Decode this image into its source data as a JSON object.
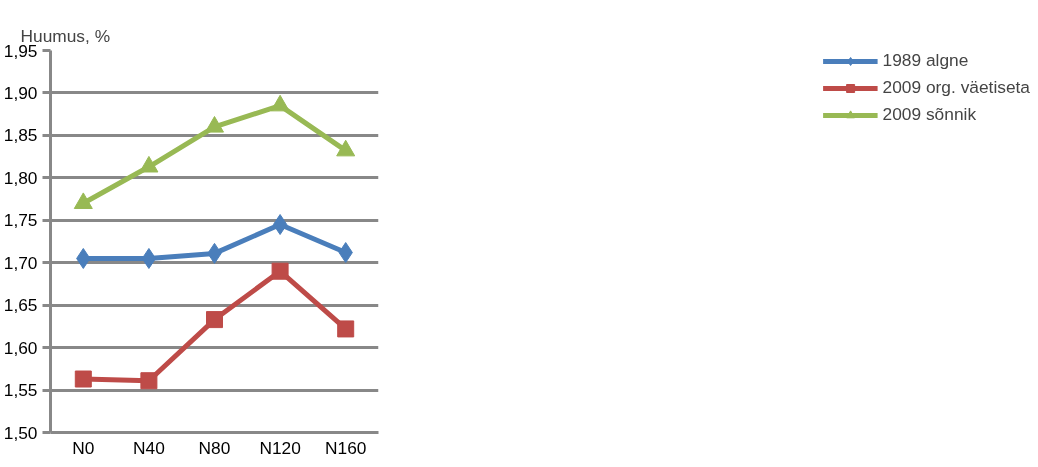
{
  "chart_data": {
    "type": "line",
    "ylabel": "Huumus, %",
    "categories": [
      "N0",
      "N40",
      "N80",
      "N120",
      "N160"
    ],
    "series": [
      {
        "name": "1989 algne",
        "color": "#4a7ebb",
        "marker": "diamond",
        "values": [
          1.705,
          1.705,
          1.711,
          1.745,
          1.712
        ]
      },
      {
        "name": "2009 org. väetiseta",
        "color": "#be4b48",
        "marker": "square",
        "values": [
          1.563,
          1.561,
          1.633,
          1.69,
          1.622
        ]
      },
      {
        "name": "2009 sõnnik",
        "color": "#98b954",
        "marker": "triangle",
        "values": [
          1.77,
          1.813,
          1.86,
          1.885,
          1.832
        ]
      }
    ],
    "ylim": [
      1.5,
      1.95
    ],
    "yticks": [
      {
        "value": 1.5,
        "label": "1,50"
      },
      {
        "value": 1.55,
        "label": "1,55"
      },
      {
        "value": 1.6,
        "label": "1,60"
      },
      {
        "value": 1.65,
        "label": "1,65"
      },
      {
        "value": 1.7,
        "label": "1,70"
      },
      {
        "value": 1.75,
        "label": "1,75"
      },
      {
        "value": 1.8,
        "label": "1,80"
      },
      {
        "value": 1.85,
        "label": "1,85"
      },
      {
        "value": 1.9,
        "label": "1,90"
      },
      {
        "value": 1.95,
        "label": "1,95"
      }
    ],
    "grid": "y",
    "legend": "right",
    "line_style": "solid"
  }
}
